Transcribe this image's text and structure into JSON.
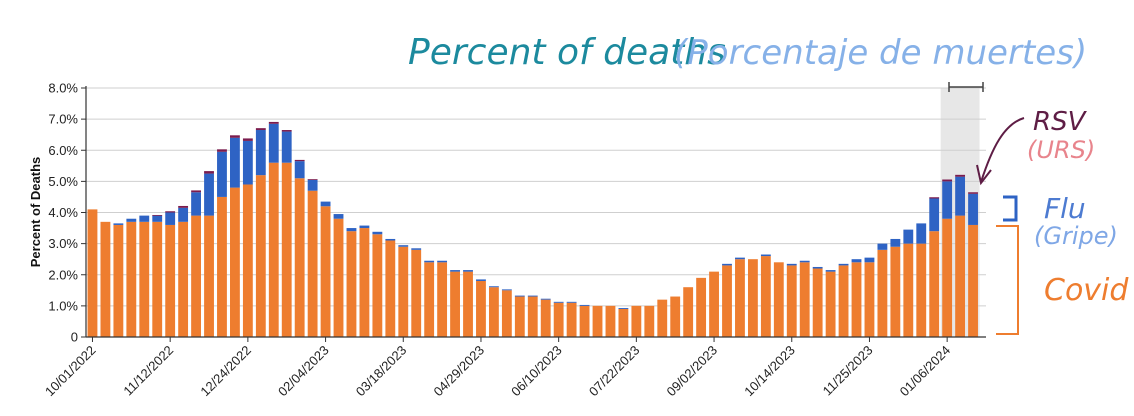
{
  "colors": {
    "covid": "#EE7D2F",
    "flu": "#2E63C4",
    "rsv": "#7B1C4E",
    "grid": "#CFCFCF",
    "shade": "#E7E7E7",
    "handTitle": "#1C8A9E",
    "handSubtitle": "#86B1E8",
    "handRsv": "#5E1D45",
    "handUrs": "#E8848C",
    "handFlu": "#4D7BD1",
    "handGripe": "#7FA7E6",
    "handCovid": "#EE7D2F"
  },
  "annotations": {
    "title": "Percent of deaths",
    "subtitle": "(Porcentaje de muertes)",
    "rsv": "RSV",
    "rsv_es": "(URS)",
    "flu": "Flu",
    "flu_es": "(Gripe)",
    "covid": "Covid"
  },
  "chart_data": {
    "type": "bar",
    "stacked": true,
    "ylabel": "Percent of Deaths",
    "ylim": [
      0,
      8
    ],
    "yticks": [
      "0",
      "1.0%",
      "2.0%",
      "3.0%",
      "4.0%",
      "5.0%",
      "6.0%",
      "7.0%",
      "8.0%"
    ],
    "xticks": [
      "10/01/2022",
      "11/12/2022",
      "12/24/2022",
      "02/04/2023",
      "03/18/2023",
      "04/29/2023",
      "06/10/2023",
      "07/22/2023",
      "09/02/2023",
      "10/14/2023",
      "11/25/2023",
      "01/06/2024"
    ],
    "xtick_index": [
      0,
      6,
      12,
      18,
      24,
      30,
      36,
      42,
      48,
      54,
      60,
      66
    ],
    "grid": true,
    "shaded_weeks": [
      66,
      67,
      68
    ],
    "series": [
      {
        "name": "Covid",
        "values": [
          4.1,
          3.7,
          3.6,
          3.7,
          3.7,
          3.7,
          3.6,
          3.7,
          3.9,
          3.9,
          4.5,
          4.8,
          4.9,
          5.2,
          5.6,
          5.6,
          5.1,
          4.7,
          4.2,
          3.8,
          3.4,
          3.5,
          3.3,
          3.1,
          2.9,
          2.8,
          2.4,
          2.4,
          2.1,
          2.1,
          1.8,
          1.6,
          1.5,
          1.3,
          1.3,
          1.2,
          1.1,
          1.1,
          1.0,
          1.0,
          1.0,
          0.9,
          1.0,
          1.0,
          1.2,
          1.3,
          1.6,
          1.9,
          2.1,
          2.3,
          2.5,
          2.5,
          2.6,
          2.4,
          2.3,
          2.4,
          2.2,
          2.1,
          2.3,
          2.4,
          2.4,
          2.8,
          2.9,
          3.0,
          3.0,
          3.4,
          3.8,
          3.9,
          3.6
        ]
      },
      {
        "name": "Flu",
        "values": [
          0,
          0,
          0.05,
          0.1,
          0.2,
          0.2,
          0.4,
          0.45,
          0.75,
          1.35,
          1.45,
          1.6,
          1.4,
          1.45,
          1.25,
          1.0,
          0.55,
          0.35,
          0.15,
          0.15,
          0.1,
          0.08,
          0.08,
          0.05,
          0.05,
          0.05,
          0.05,
          0.05,
          0.05,
          0.05,
          0.05,
          0.03,
          0.03,
          0.03,
          0.03,
          0.03,
          0.03,
          0.03,
          0.03,
          0,
          0,
          0.03,
          0,
          0,
          0,
          0,
          0,
          0,
          0,
          0.05,
          0.05,
          0,
          0.05,
          0,
          0.05,
          0.05,
          0.05,
          0.05,
          0.05,
          0.1,
          0.15,
          0.2,
          0.25,
          0.45,
          0.65,
          1.05,
          1.2,
          1.25,
          1.0
        ]
      },
      {
        "name": "RSV",
        "values": [
          0,
          0,
          0,
          0,
          0,
          0.02,
          0.04,
          0.06,
          0.06,
          0.08,
          0.08,
          0.08,
          0.08,
          0.06,
          0.06,
          0.05,
          0.04,
          0.02,
          0,
          0,
          0,
          0,
          0,
          0,
          0,
          0,
          0,
          0,
          0,
          0,
          0,
          0,
          0,
          0,
          0,
          0,
          0,
          0,
          0,
          0,
          0,
          0,
          0,
          0,
          0,
          0,
          0,
          0,
          0,
          0,
          0,
          0,
          0,
          0,
          0,
          0,
          0,
          0,
          0,
          0,
          0,
          0,
          0,
          0,
          0,
          0.04,
          0.06,
          0.06,
          0.05
        ]
      }
    ]
  }
}
